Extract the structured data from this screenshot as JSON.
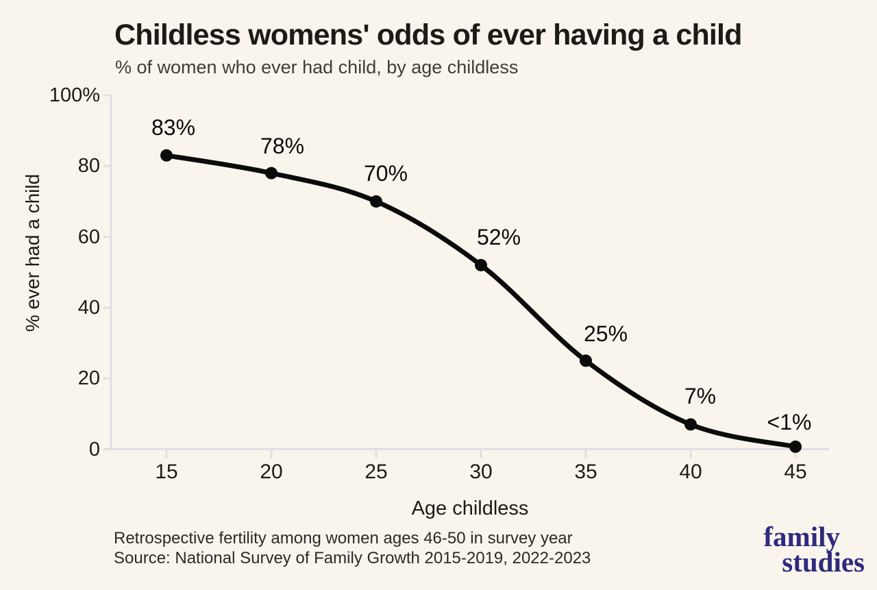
{
  "chart_data": {
    "type": "line",
    "title": "Childless womens' odds of ever having a child",
    "subtitle": "% of women who ever had child, by age childless",
    "xlabel": "Age childless",
    "ylabel": "% ever had a child",
    "x": [
      15,
      20,
      25,
      30,
      35,
      40,
      45
    ],
    "values": [
      83,
      78,
      70,
      52,
      25,
      7,
      0.7
    ],
    "point_labels": [
      "83%",
      "78%",
      "70%",
      "52%",
      "25%",
      "7%",
      "<1%"
    ],
    "x_tick_labels": [
      "15",
      "20",
      "25",
      "30",
      "35",
      "40",
      "45"
    ],
    "y_tick_labels": [
      "100%",
      "80",
      "60",
      "40",
      "20",
      "0"
    ],
    "y_tick_values": [
      100,
      80,
      60,
      40,
      20,
      0
    ],
    "ylim": [
      0,
      100
    ],
    "grid": false,
    "legend": "none",
    "line_color": "#0c0b0b",
    "marker": "circle"
  },
  "footer": {
    "note": "Retrospective fertility among women ages 46-50 in survey year",
    "source": "Source: National Survey of Family Growth 2015-2019, 2022-2023"
  },
  "logo": {
    "line1": "family",
    "line2": "studies",
    "color": "#2f2a7e"
  },
  "colors": {
    "background": "#faf5ec",
    "axis": "#e0dde4",
    "title": "#1d1b18",
    "subtitle": "#403c38",
    "tick_text": "#1d1b18",
    "footer": "#2c2927"
  }
}
